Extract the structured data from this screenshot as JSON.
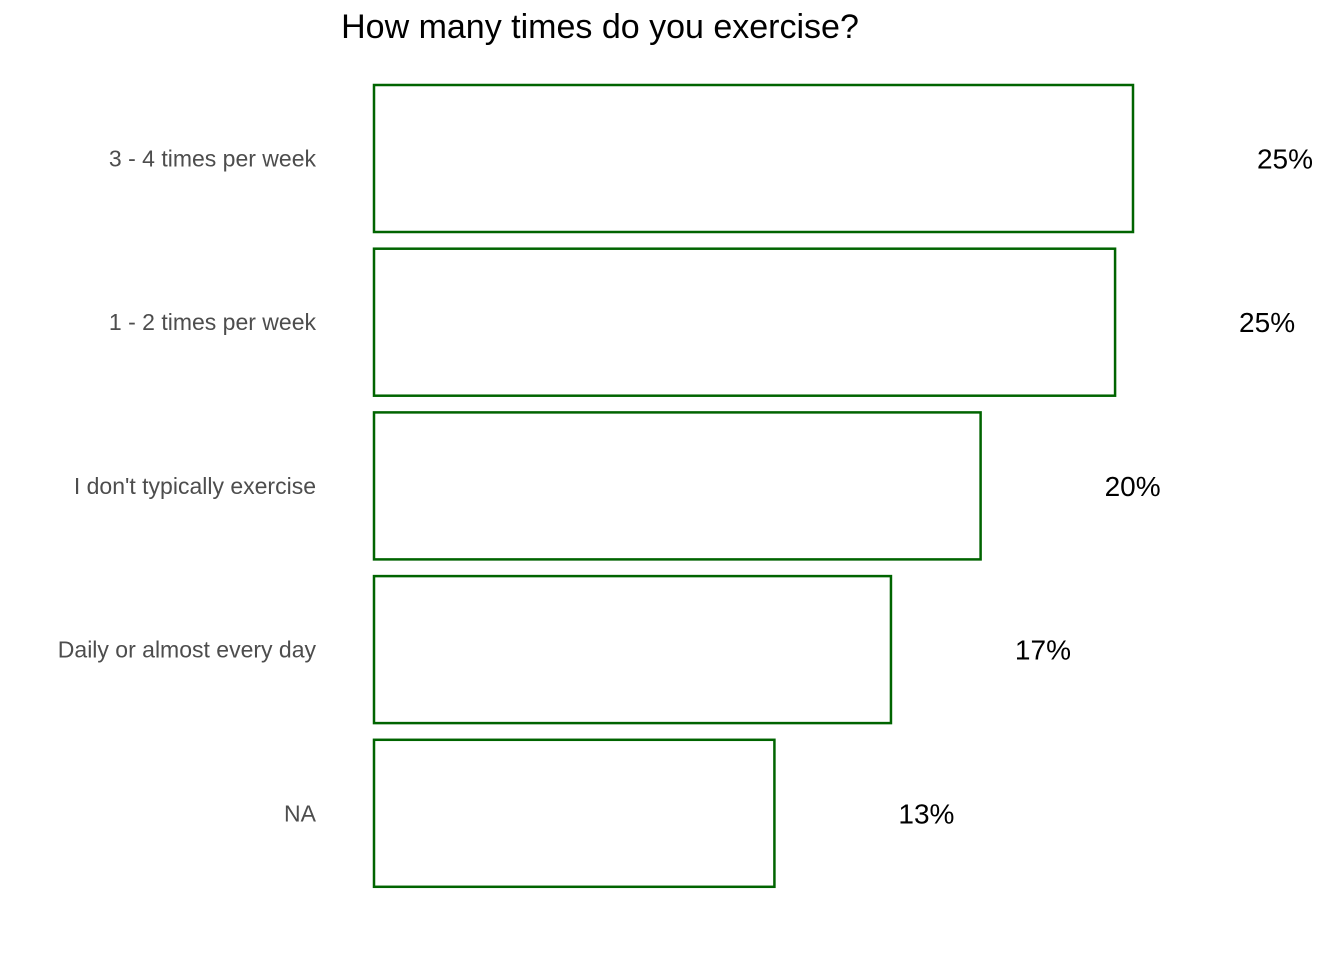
{
  "chart_data": {
    "type": "bar",
    "orientation": "horizontal",
    "title": "How many times do you exercise?",
    "xlabel": "",
    "ylabel": "",
    "categories": [
      "3 - 4 times per week",
      "1 - 2 times per week",
      "I don't typically exercise",
      "Daily or almost every day",
      "NA"
    ],
    "values": [
      25.4,
      24.8,
      20.3,
      17.3,
      13.4
    ],
    "data_labels": [
      "25%",
      "25%",
      "20%",
      "17%",
      "13%"
    ],
    "xlim": [
      0,
      25.4
    ],
    "grid": false,
    "legend": "none",
    "colors": {
      "bar_outline": "#006400",
      "bar_fill": "#ffffff",
      "category_text": "#4d4d4d",
      "value_text": "#000000"
    }
  }
}
